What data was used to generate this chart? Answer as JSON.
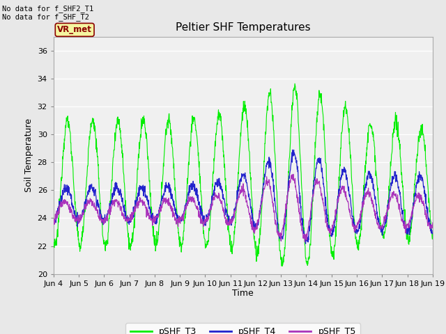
{
  "title": "Peltier SHF Temperatures",
  "xlabel": "Time",
  "ylabel": "Soil Temperature",
  "ylim": [
    20,
    37
  ],
  "yticks": [
    20,
    22,
    24,
    26,
    28,
    30,
    32,
    34,
    36
  ],
  "fig_bg_color": "#e8e8e8",
  "plot_bg_color": "#f0f0f0",
  "no_data_text1": "No data for f_SHF2_T1",
  "no_data_text2": "No data for f_SHF_T2",
  "vr_met_label": "VR_met",
  "legend_labels": [
    "pSHF_T3",
    "pSHF_T4",
    "pSHF_T5"
  ],
  "line_colors": [
    "#00ee00",
    "#2222cc",
    "#aa33bb"
  ],
  "legend_colors": [
    "#00ee00",
    "#2222cc",
    "#aa33bb"
  ],
  "x_tick_labels": [
    "Jun 4",
    "Jun 5",
    "Jun 6",
    "Jun 7",
    "Jun 8",
    "Jun 9",
    "Jun 10",
    "Jun 11",
    "Jun 12",
    "Jun 13",
    "Jun 14",
    "Jun 15",
    "Jun 16",
    "Jun 17",
    "Jun 18",
    "Jun 19"
  ],
  "num_days": 15,
  "points_per_day": 96
}
